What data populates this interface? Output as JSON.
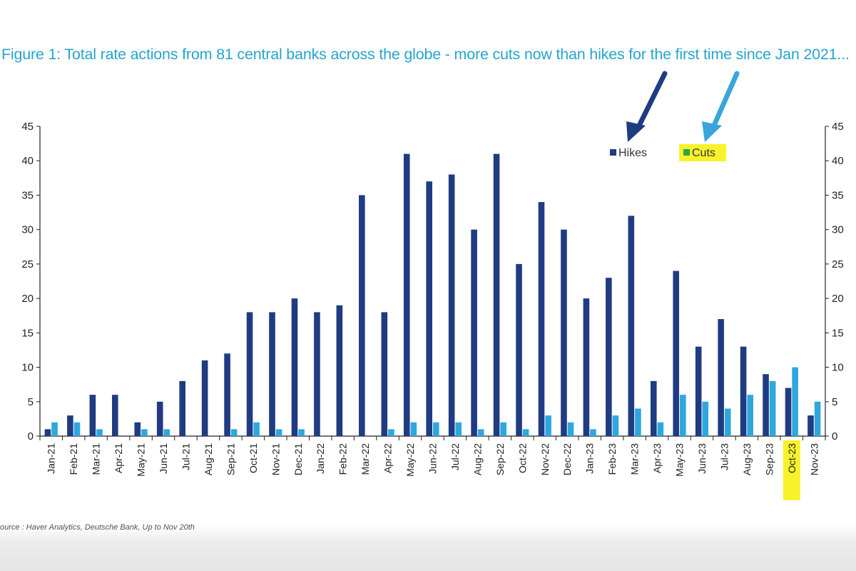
{
  "figure": {
    "title": "Figure 1: Total rate actions from 81 central banks across the globe - more cuts now than hikes for the first time since Jan 2021...",
    "source": "ource : Haver Analytics, Deutsche Bank, Up to Nov 20th"
  },
  "chart_data": {
    "type": "bar",
    "title": "Figure 1: Total rate actions from 81 central banks across the globe - more cuts now than hikes for the first time since Jan 2021...",
    "xlabel": "",
    "ylabel": "",
    "ylim": [
      0,
      45
    ],
    "yticks": [
      0,
      5,
      10,
      15,
      20,
      25,
      30,
      35,
      40,
      45
    ],
    "grid": false,
    "secondary_axis": true,
    "legend_position": "top-right",
    "categories": [
      "Jan-21",
      "Feb-21",
      "Mar-21",
      "Apr-21",
      "May-21",
      "Jun-21",
      "Jul-21",
      "Aug-21",
      "Sep-21",
      "Oct-21",
      "Nov-21",
      "Dec-21",
      "Jan-22",
      "Feb-22",
      "Mar-22",
      "Apr-22",
      "May-22",
      "Jun-22",
      "Jul-22",
      "Aug-22",
      "Sep-22",
      "Oct-22",
      "Nov-22",
      "Dec-22",
      "Jan-23",
      "Feb-23",
      "Mar-23",
      "Apr-23",
      "May-23",
      "Jun-23",
      "Jul-23",
      "Aug-23",
      "Sep-23",
      "Oct-23",
      "Nov-23"
    ],
    "series": [
      {
        "name": "Hikes",
        "color": "#1f3b82",
        "values": [
          1,
          3,
          6,
          6,
          2,
          5,
          8,
          11,
          12,
          18,
          18,
          20,
          18,
          19,
          35,
          18,
          41,
          37,
          38,
          30,
          41,
          25,
          34,
          30,
          20,
          23,
          32,
          8,
          24,
          13,
          17,
          13,
          9,
          7,
          3
        ]
      },
      {
        "name": "Cuts",
        "color": "#2ea7df",
        "values": [
          2,
          2,
          1,
          0,
          1,
          1,
          0,
          0,
          1,
          2,
          1,
          1,
          0,
          0,
          0,
          1,
          2,
          2,
          2,
          1,
          2,
          1,
          3,
          2,
          1,
          3,
          4,
          2,
          6,
          5,
          4,
          6,
          8,
          10,
          5
        ]
      }
    ],
    "highlighted_category": "Oct-23",
    "highlight_color": "#f7f32a"
  }
}
